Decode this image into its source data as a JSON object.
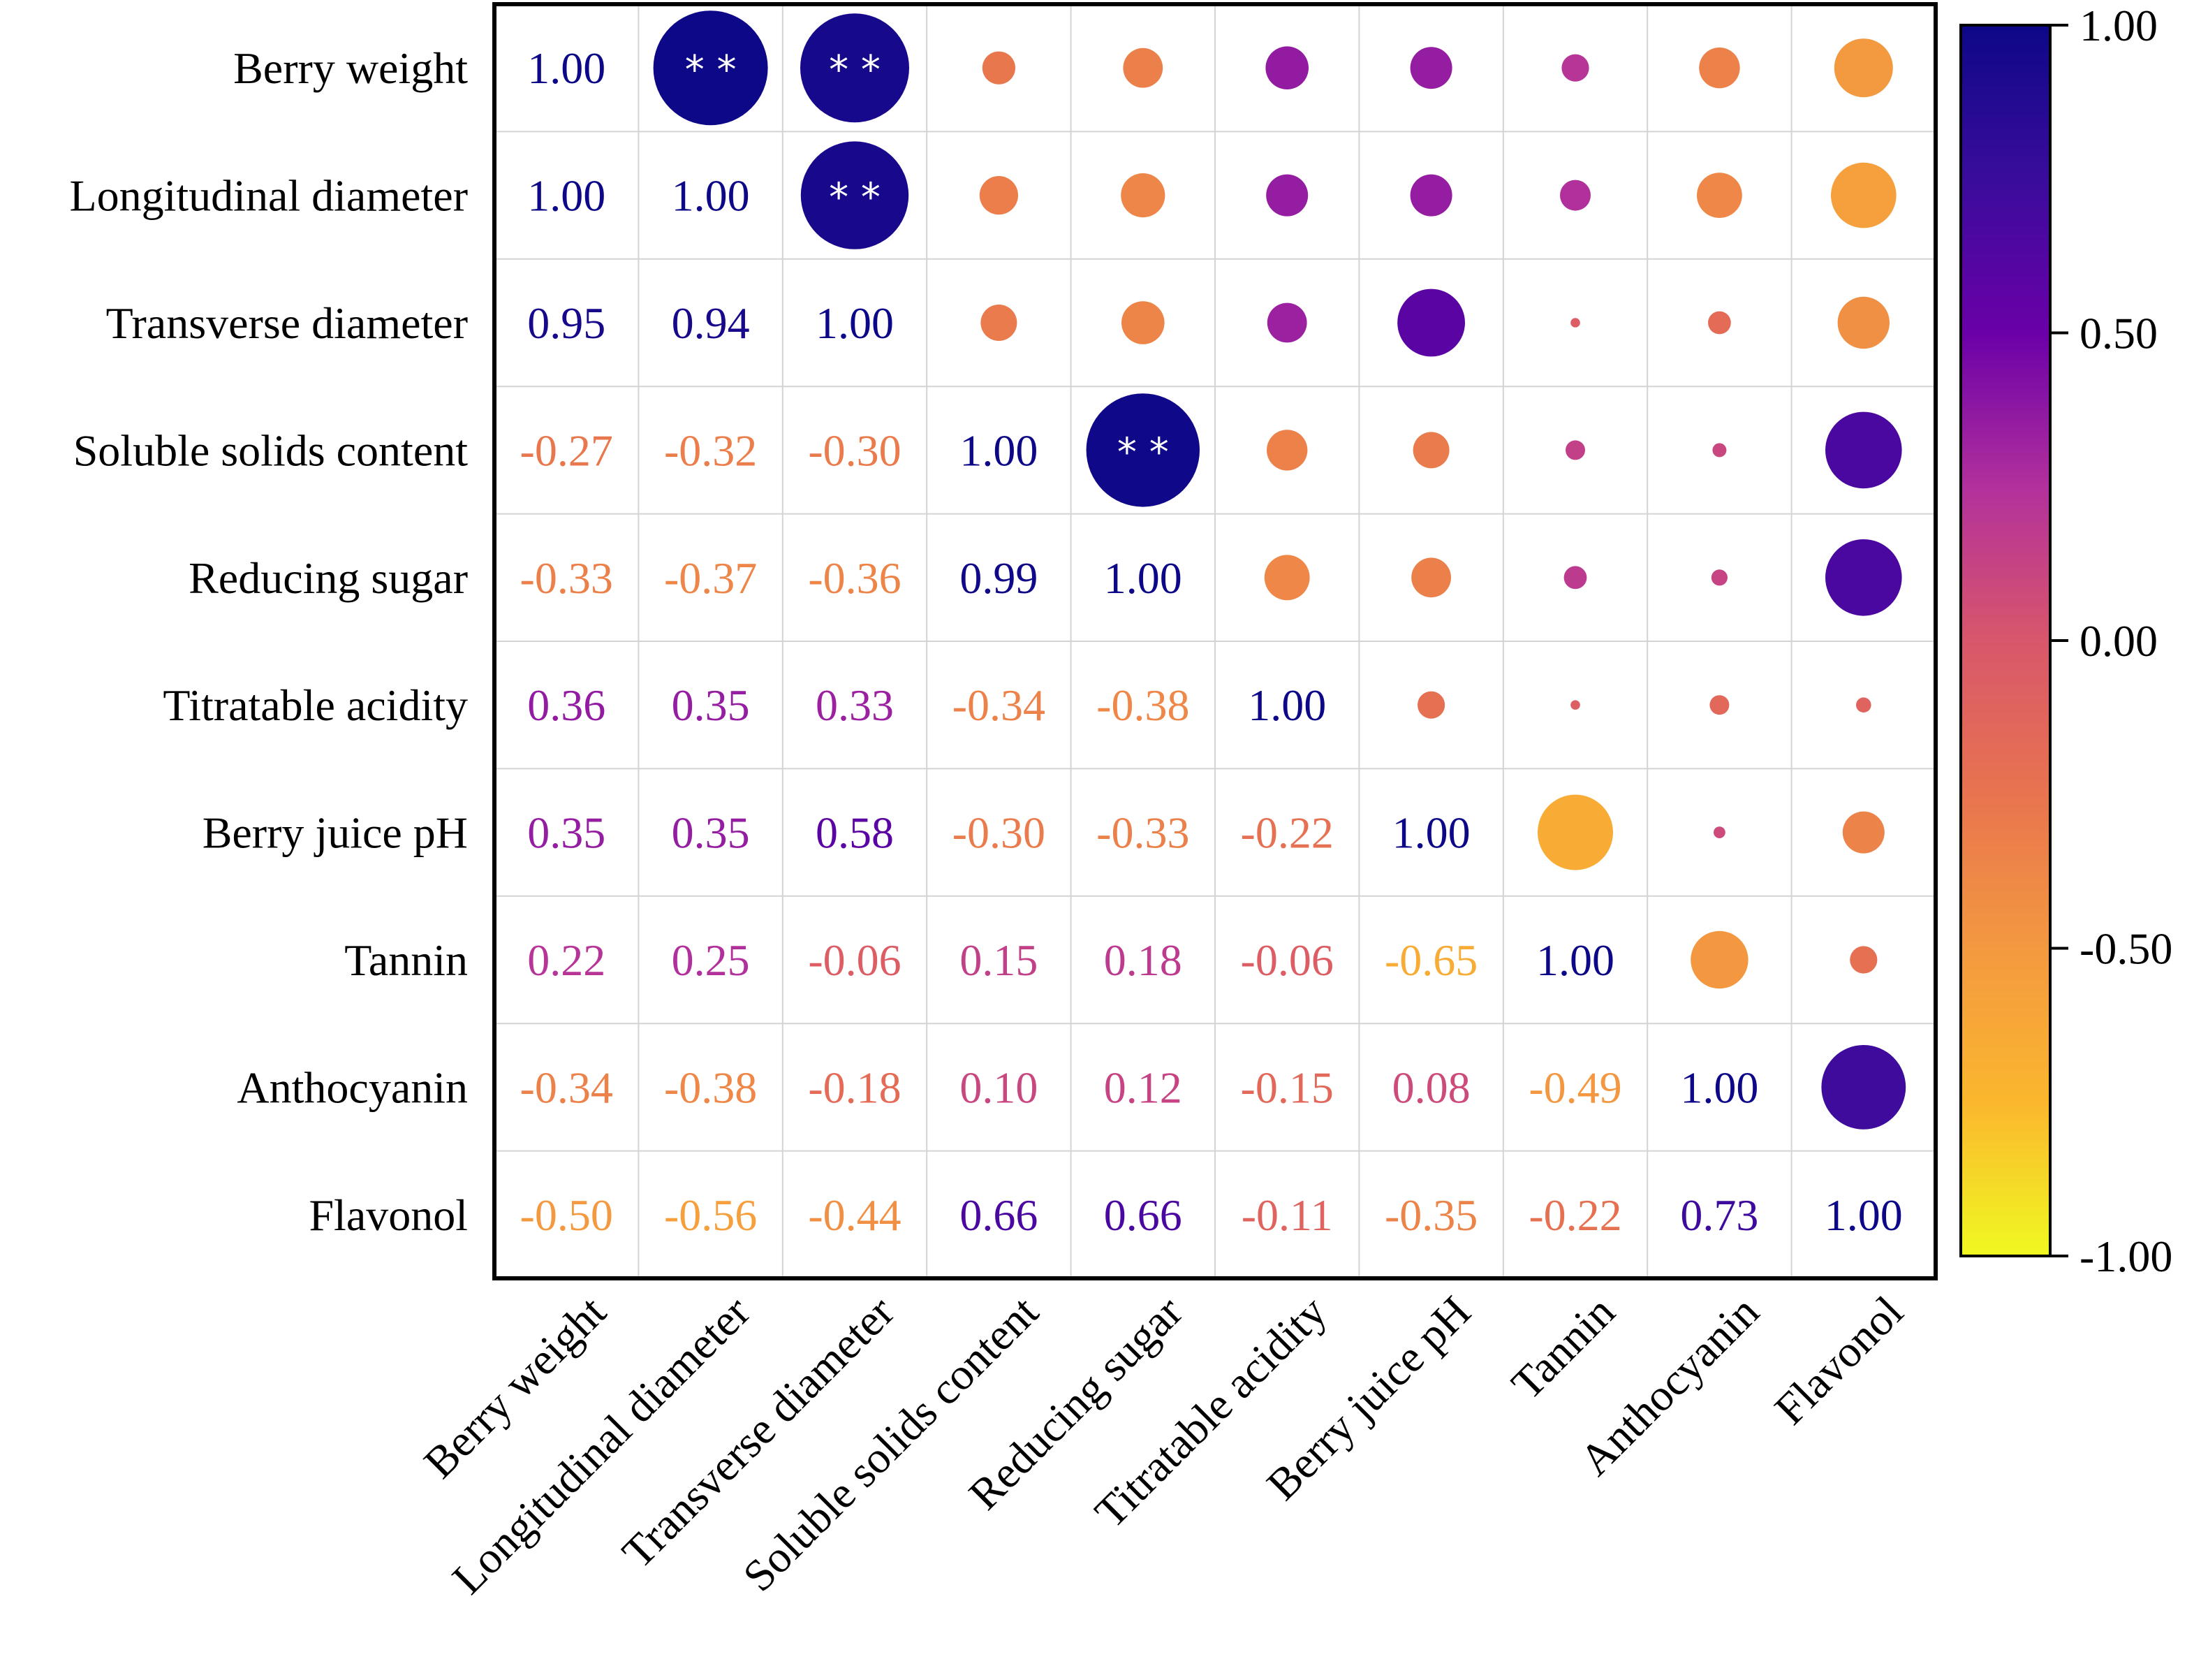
{
  "chart_data": {
    "type": "heatmap",
    "subtype": "correlation-matrix",
    "title": "",
    "variables": [
      "Berry weight",
      "Longitudinal diameter",
      "Transverse diameter",
      "Soluble solids content",
      "Reducing sugar",
      "Titratable acidity",
      "Berry juice pH",
      "Tannin",
      "Anthocyanin",
      "Flavonol"
    ],
    "matrix": [
      [
        1.0,
        1.0,
        0.95,
        -0.27,
        -0.33,
        0.36,
        0.35,
        0.22,
        -0.34,
        -0.5
      ],
      [
        1.0,
        1.0,
        0.94,
        -0.32,
        -0.37,
        0.35,
        0.35,
        0.25,
        -0.38,
        -0.56
      ],
      [
        0.95,
        0.94,
        1.0,
        -0.3,
        -0.36,
        0.33,
        0.58,
        -0.06,
        -0.18,
        -0.44
      ],
      [
        -0.27,
        -0.32,
        -0.3,
        1.0,
        0.99,
        -0.34,
        -0.3,
        0.15,
        0.1,
        0.66
      ],
      [
        -0.33,
        -0.37,
        -0.36,
        0.99,
        1.0,
        -0.38,
        -0.33,
        0.18,
        0.12,
        0.66
      ],
      [
        0.36,
        0.35,
        0.33,
        -0.34,
        -0.38,
        1.0,
        -0.22,
        -0.06,
        -0.15,
        -0.11
      ],
      [
        0.35,
        0.35,
        0.58,
        -0.3,
        -0.33,
        -0.22,
        1.0,
        -0.65,
        0.08,
        -0.35
      ],
      [
        0.22,
        0.25,
        -0.06,
        0.15,
        0.18,
        -0.06,
        -0.65,
        1.0,
        -0.49,
        -0.22
      ],
      [
        -0.34,
        -0.38,
        -0.18,
        0.1,
        0.12,
        -0.15,
        0.08,
        -0.49,
        1.0,
        0.73
      ],
      [
        -0.5,
        -0.56,
        -0.44,
        0.66,
        0.66,
        -0.11,
        -0.35,
        -0.22,
        0.73,
        1.0
      ]
    ],
    "lower_triangle": "numbers",
    "upper_triangle": "circles",
    "significance_marker": "**",
    "significant_pairs": [
      [
        0,
        1
      ],
      [
        0,
        2
      ],
      [
        1,
        2
      ],
      [
        3,
        4
      ]
    ],
    "colorbar": {
      "range": [
        -1.0,
        1.0
      ],
      "ticks": [
        "1.00",
        "0.50",
        "0.00",
        "-0.50",
        "-1.00"
      ],
      "tick_values": [
        1.0,
        0.5,
        0.0,
        -0.5,
        -1.0
      ]
    },
    "colormap": {
      "name": "plasma-reversed",
      "stops": [
        [
          -1.0,
          "#f0f921"
        ],
        [
          -0.75,
          "#fbb72e"
        ],
        [
          -0.5,
          "#f39940"
        ],
        [
          -0.25,
          "#e8744f"
        ],
        [
          0.0,
          "#d8576b"
        ],
        [
          0.25,
          "#b2309c"
        ],
        [
          0.5,
          "#6a00a8"
        ],
        [
          0.75,
          "#3a0c9c"
        ],
        [
          1.0,
          "#0d0887"
        ]
      ]
    }
  }
}
